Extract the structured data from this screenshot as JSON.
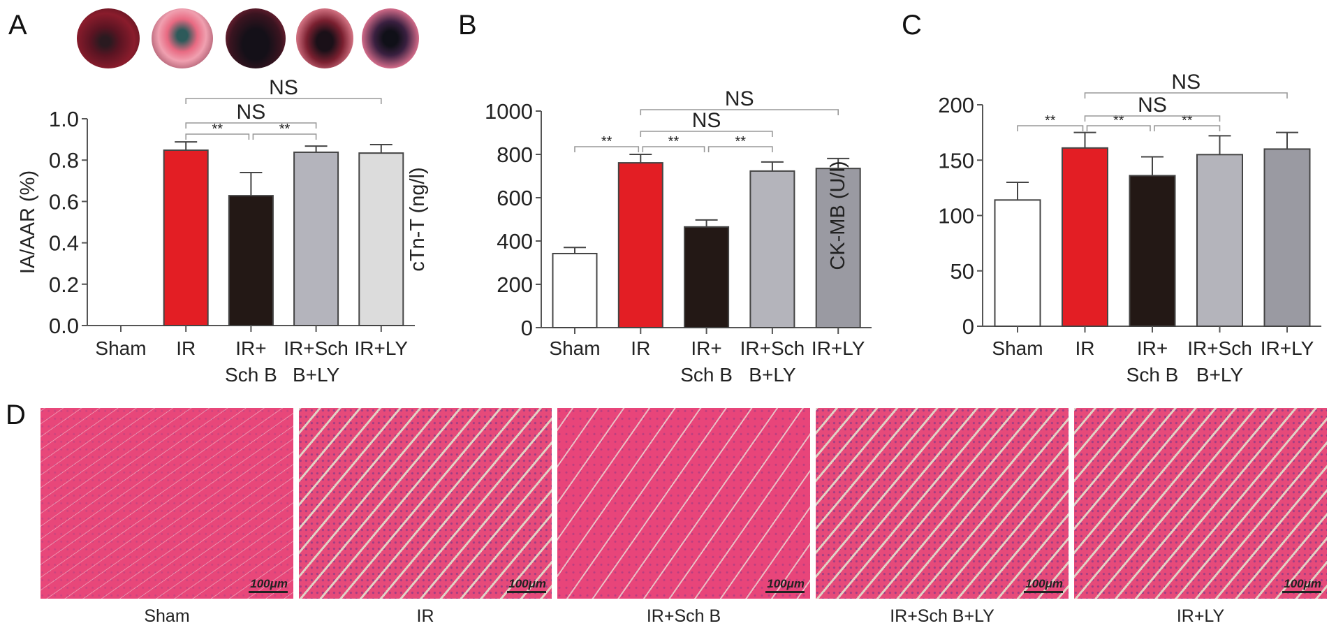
{
  "panel_letters": {
    "a": "A",
    "b": "B",
    "c": "C",
    "d": "D"
  },
  "groups": [
    {
      "label_lines": [
        "Sham"
      ]
    },
    {
      "label_lines": [
        "IR"
      ]
    },
    {
      "label_lines": [
        "IR+",
        "Sch B"
      ]
    },
    {
      "label_lines": [
        "IR+Sch",
        "B+LY"
      ]
    },
    {
      "label_lines": [
        "IR+LY"
      ]
    }
  ],
  "heart_images": {
    "count": 5,
    "description_colors": [
      "#8a1c2c",
      "#d85a70",
      "#3a1420",
      "#a83040",
      "#b03a55"
    ]
  },
  "chart_data": [
    {
      "panel": "A",
      "type": "bar",
      "categories": [
        "Sham",
        "IR",
        "IR+ Sch B",
        "IR+Sch B+LY",
        "IR+LY"
      ],
      "values": [
        0.0,
        0.848,
        0.628,
        0.838,
        0.834
      ],
      "error_upper": [
        0.0,
        0.888,
        0.74,
        0.868,
        0.875
      ],
      "colors": [
        "#ffffff",
        "#e31e24",
        "#231815",
        "#b4b4bc",
        "#dcdcdc"
      ],
      "ylabel": "IA/AAR (%)",
      "ylim": [
        0,
        1.0
      ],
      "yticks": [
        "0.0",
        "0.2",
        "0.4",
        "0.6",
        "0.8",
        "1.0"
      ],
      "ytick_values": [
        0,
        0.2,
        0.4,
        0.6,
        0.8,
        1.0
      ],
      "brackets": [
        {
          "from": 1,
          "to": 2,
          "label": "**",
          "level": 0
        },
        {
          "from": 2,
          "to": 3,
          "label": "**",
          "level": 0
        },
        {
          "from": 1,
          "to": 3,
          "label": "NS",
          "level": 1
        },
        {
          "from": 1,
          "to": 4,
          "label": "NS",
          "level": 2
        }
      ]
    },
    {
      "panel": "B",
      "type": "bar",
      "categories": [
        "Sham",
        "IR",
        "IR+ Sch B",
        "IR+Sch B+LY",
        "IR+LY"
      ],
      "values": [
        342,
        761,
        465,
        723,
        735
      ],
      "error_upper": [
        370,
        800,
        497,
        765,
        781
      ],
      "colors": [
        "#ffffff",
        "#e31e24",
        "#231815",
        "#b4b4bb",
        "#9a9aa2"
      ],
      "ylabel": "cTn-T (ng/l)",
      "ylim": [
        0,
        1000
      ],
      "yticks": [
        "0",
        "200",
        "400",
        "600",
        "800",
        "1000"
      ],
      "ytick_values": [
        0,
        200,
        400,
        600,
        800,
        1000
      ],
      "brackets": [
        {
          "from": 0,
          "to": 1,
          "label": "**",
          "level": 0
        },
        {
          "from": 1,
          "to": 2,
          "label": "**",
          "level": 0
        },
        {
          "from": 2,
          "to": 3,
          "label": "**",
          "level": 0
        },
        {
          "from": 1,
          "to": 3,
          "label": "NS",
          "level": 1
        },
        {
          "from": 1,
          "to": 4,
          "label": "NS",
          "level": 2
        }
      ]
    },
    {
      "panel": "C",
      "type": "bar",
      "categories": [
        "Sham",
        "IR",
        "IR+ Sch B",
        "IR+Sch B+LY",
        "IR+LY"
      ],
      "values": [
        114,
        161,
        136,
        155,
        160
      ],
      "error_upper": [
        130,
        175,
        153,
        172,
        175
      ],
      "colors": [
        "#ffffff",
        "#e31e24",
        "#231815",
        "#b4b4bb",
        "#9a9aa2"
      ],
      "ylabel": "CK-MB (U/l)",
      "ylim": [
        0,
        200
      ],
      "yticks": [
        "0",
        "50",
        "100",
        "150",
        "200"
      ],
      "ytick_values": [
        0,
        50,
        100,
        150,
        200
      ],
      "brackets": [
        {
          "from": 0,
          "to": 1,
          "label": "**",
          "level": 0
        },
        {
          "from": 1,
          "to": 2,
          "label": "**",
          "level": 0
        },
        {
          "from": 2,
          "to": 3,
          "label": "**",
          "level": 0
        },
        {
          "from": 1,
          "to": 3,
          "label": "NS",
          "level": 1
        },
        {
          "from": 1,
          "to": 4,
          "label": "NS",
          "level": 2
        }
      ]
    }
  ],
  "histology": {
    "scale_bar": "100μm",
    "panels": [
      {
        "label": "Sham"
      },
      {
        "label": "IR"
      },
      {
        "label": "IR+Sch B"
      },
      {
        "label": "IR+Sch B+LY"
      },
      {
        "label": "IR+LY"
      }
    ]
  }
}
